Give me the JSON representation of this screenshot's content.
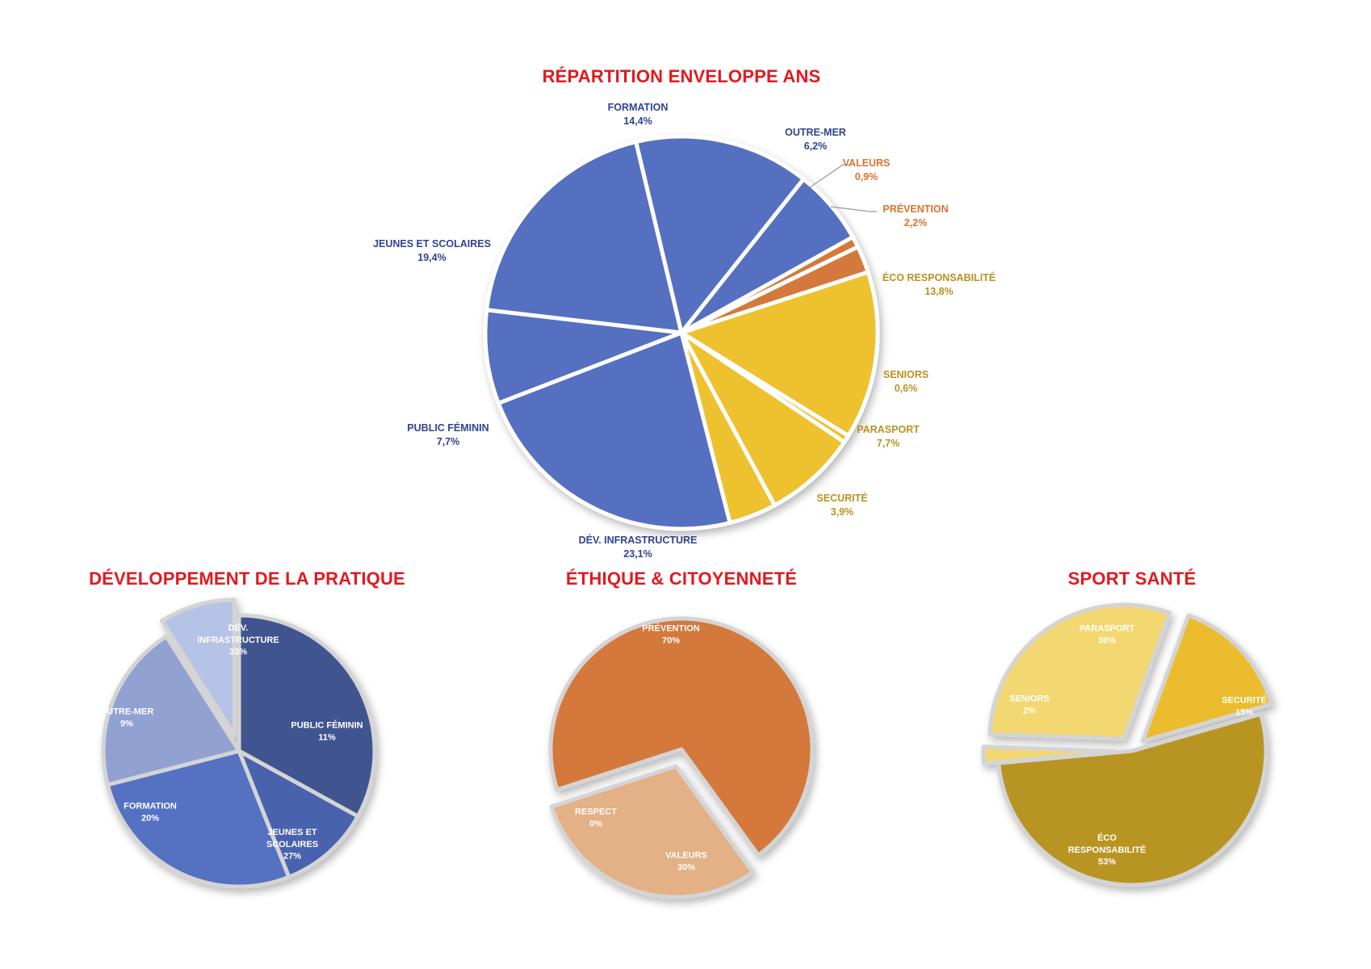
{
  "colors": {
    "title": "#e3191e",
    "blue": "#5570c0",
    "orange": "#d4793a",
    "yellow": "#eec12f",
    "label_blue": "#2f4391",
    "label_orange": "#d9732f",
    "label_gold": "#b99222"
  },
  "chart_data": [
    {
      "type": "pie",
      "title": "RÉPARTITION ENVELOPPE ANS",
      "slices": [
        {
          "name": "ÉCO RESPONSABILITÉ",
          "value": 13.8,
          "label": "13,8%",
          "color": "#eec12f",
          "label_color": "#b99222"
        },
        {
          "name": "SENIORS",
          "value": 0.6,
          "label": "0,6%",
          "color": "#eec12f",
          "label_color": "#b99222"
        },
        {
          "name": "PARASPORT",
          "value": 7.7,
          "label": "7,7%",
          "color": "#eec12f",
          "label_color": "#b99222"
        },
        {
          "name": "SECURITÉ",
          "value": 3.9,
          "label": "3,9%",
          "color": "#eec12f",
          "label_color": "#b99222"
        },
        {
          "name": "DÉV. INFRASTRUCTURE",
          "value": 23.1,
          "label": "23,1%",
          "color": "#5570c0",
          "label_color": "#2f4391"
        },
        {
          "name": "PUBLIC FÉMININ",
          "value": 7.7,
          "label": "7,7%",
          "color": "#5570c0",
          "label_color": "#2f4391"
        },
        {
          "name": "JEUNES ET SCOLAIRES",
          "value": 19.4,
          "label": "19,4%",
          "color": "#5570c0",
          "label_color": "#2f4391"
        },
        {
          "name": "FORMATION",
          "value": 14.4,
          "label": "14,4%",
          "color": "#5570c0",
          "label_color": "#2f4391"
        },
        {
          "name": "OUTRE-MER",
          "value": 6.2,
          "label": "6,2%",
          "color": "#5570c0",
          "label_color": "#2f4391"
        },
        {
          "name": "VALEURS",
          "value": 0.9,
          "label": "0,9%",
          "color": "#d4793a",
          "label_color": "#d9732f"
        },
        {
          "name": "PRÉVENTION",
          "value": 2.2,
          "label": "2,2%",
          "color": "#d4793a",
          "label_color": "#d9732f"
        }
      ]
    },
    {
      "type": "pie",
      "title": "DÉVELOPPEMENT DE LA PRATIQUE",
      "slices": [
        {
          "name": "DÉV. INFRASTRUCTURE",
          "value": 33,
          "label": "33%",
          "color": "#3f548f"
        },
        {
          "name": "PUBLIC FÉMININ",
          "value": 11,
          "label": "11%",
          "color": "#4862ad"
        },
        {
          "name": "JEUNES ET SCOLAIRES",
          "value": 27,
          "label": "27%",
          "color": "#5571c2"
        },
        {
          "name": "FORMATION",
          "value": 20,
          "label": "20%",
          "color": "#91a1d1"
        },
        {
          "name": "OUTRE-MER",
          "value": 9,
          "label": "9%",
          "color": "#b5c4e6",
          "exploded": true
        }
      ]
    },
    {
      "type": "pie",
      "title": "ÉTHIQUE & CITOYENNETÉ",
      "slices": [
        {
          "name": "PRÉVENTION",
          "value": 70,
          "label": "70%",
          "color": "#d4793a"
        },
        {
          "name": "VALEURS",
          "value": 30,
          "label": "30%",
          "color": "#e4b085",
          "exploded": true
        },
        {
          "name": "RESPECT",
          "value": 0,
          "label": "0%",
          "color": "#e4b085"
        }
      ]
    },
    {
      "type": "pie",
      "title": "SPORT SANTÉ",
      "slices": [
        {
          "name": "PARASPORT",
          "value": 30,
          "label": "30%",
          "color": "#f3d872",
          "exploded": true
        },
        {
          "name": "SECURITÉ",
          "value": 15,
          "label": "15%",
          "color": "#ebbd2d",
          "exploded": true
        },
        {
          "name": "ÉCO RESPONSABILITÉ",
          "value": 53,
          "label": "53%",
          "color": "#b89423"
        },
        {
          "name": "SENIORS",
          "value": 2,
          "label": "2%",
          "color": "#f3d872",
          "exploded": true
        }
      ]
    }
  ]
}
